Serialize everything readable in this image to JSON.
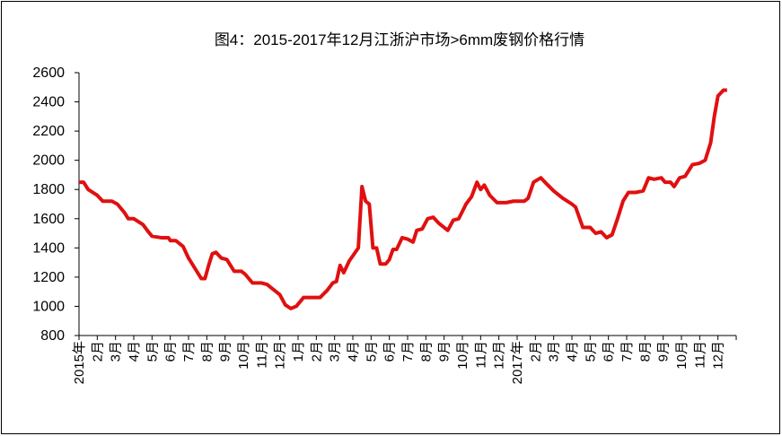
{
  "chart_data": {
    "type": "line",
    "title": "图4：2015-2017年12月江浙沪市场>6mm废钢价格行情",
    "categories": [
      "2015年",
      "2月",
      "3月",
      "4月",
      "5月",
      "6月",
      "7月",
      "8月",
      "9月",
      "10月",
      "11月",
      "12月",
      "1月",
      "2月",
      "3月",
      "4月",
      "5月",
      "6月",
      "7月",
      "8月",
      "9月",
      "10月",
      "11月",
      "12月",
      "2017年",
      "2月",
      "3月",
      "4月",
      "5月",
      "6月",
      "7月",
      "8月",
      "9月",
      "10月",
      "11月",
      "12月"
    ],
    "xlim": [
      0,
      36
    ],
    "ylim": [
      800,
      2600
    ],
    "yticks": [
      800,
      1000,
      1200,
      1400,
      1600,
      1800,
      2000,
      2200,
      2400,
      2600
    ],
    "series": [
      {
        "color": "#e01010",
        "x": [
          0,
          0.25,
          0.5,
          1,
          1.3,
          1.8,
          2.1,
          2.5,
          2.7,
          3,
          3.5,
          3.8,
          4,
          4.5,
          4.9,
          5,
          5.3,
          5.7,
          6,
          6.4,
          6.7,
          6.9,
          7.1,
          7.3,
          7.5,
          7.8,
          8.1,
          8.5,
          8.9,
          9.1,
          9.5,
          10,
          10.3,
          10.7,
          11,
          11.3,
          11.6,
          11.9,
          12.3,
          12.8,
          13.2,
          13.6,
          13.9,
          14.1,
          14.3,
          14.5,
          14.8,
          15.3,
          15.5,
          15.7,
          15.9,
          16.1,
          16.3,
          16.5,
          16.8,
          17,
          17.2,
          17.4,
          17.7,
          18,
          18.3,
          18.5,
          18.8,
          19.1,
          19.4,
          19.7,
          20,
          20.2,
          20.5,
          20.8,
          21.2,
          21.5,
          21.8,
          22,
          22.2,
          22.5,
          22.9,
          23.4,
          23.8,
          24.4,
          24.6,
          24.9,
          25.3,
          25.6,
          26,
          26.5,
          27,
          27.2,
          27.6,
          28,
          28.3,
          28.6,
          28.9,
          29.2,
          29.5,
          29.8,
          30.1,
          30.5,
          30.9,
          31.2,
          31.5,
          31.9,
          32.1,
          32.4,
          32.6,
          32.9,
          33.2,
          33.6,
          34,
          34.3,
          34.6,
          34.8,
          35,
          35.3,
          35.5
        ],
        "values": [
          1850,
          1850,
          1800,
          1760,
          1720,
          1720,
          1700,
          1640,
          1600,
          1600,
          1560,
          1510,
          1480,
          1470,
          1470,
          1450,
          1450,
          1410,
          1330,
          1250,
          1190,
          1190,
          1280,
          1360,
          1370,
          1330,
          1320,
          1240,
          1240,
          1220,
          1160,
          1160,
          1150,
          1110,
          1080,
          1010,
          985,
          1000,
          1060,
          1060,
          1060,
          1110,
          1160,
          1170,
          1280,
          1230,
          1310,
          1400,
          1820,
          1720,
          1700,
          1400,
          1400,
          1290,
          1290,
          1320,
          1390,
          1390,
          1470,
          1460,
          1440,
          1520,
          1530,
          1600,
          1610,
          1570,
          1540,
          1520,
          1590,
          1600,
          1700,
          1750,
          1850,
          1800,
          1830,
          1760,
          1710,
          1710,
          1720,
          1720,
          1740,
          1850,
          1880,
          1840,
          1790,
          1740,
          1700,
          1680,
          1540,
          1540,
          1500,
          1510,
          1470,
          1490,
          1600,
          1720,
          1780,
          1780,
          1790,
          1880,
          1870,
          1880,
          1850,
          1850,
          1820,
          1880,
          1890,
          1970,
          1980,
          2000,
          2120,
          2300,
          2440,
          2480,
          2480
        ]
      }
    ]
  }
}
